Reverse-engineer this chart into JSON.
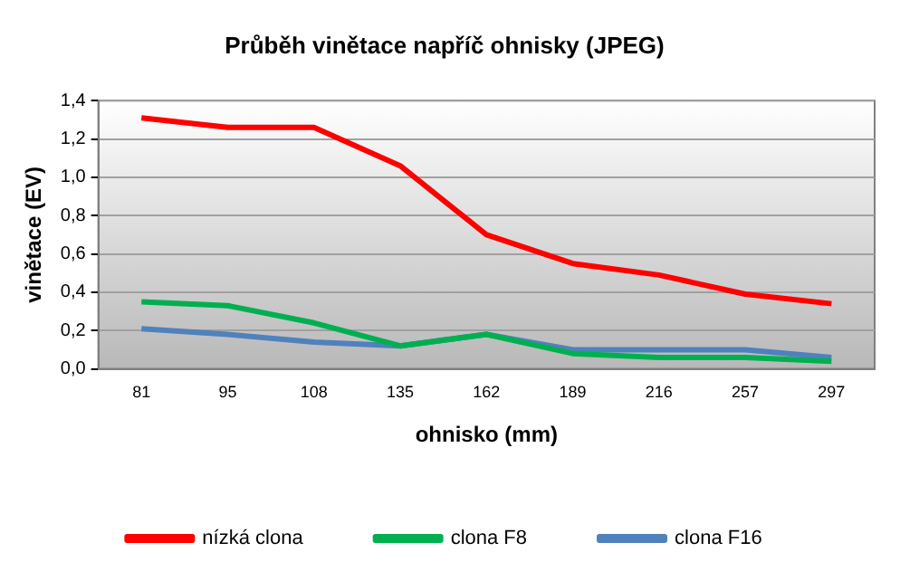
{
  "chart_data": {
    "type": "line",
    "title": "Průběh vinětace napříč ohnisky (JPEG)",
    "xlabel": "ohnisko (mm)",
    "ylabel": "vinětace (EV)",
    "categories": [
      "81",
      "95",
      "108",
      "135",
      "162",
      "189",
      "216",
      "257",
      "297"
    ],
    "series": [
      {
        "name": "nízká clona",
        "color": "#ff0000",
        "values": [
          1.31,
          1.26,
          1.26,
          1.06,
          0.7,
          0.55,
          0.49,
          0.39,
          0.34
        ]
      },
      {
        "name": "clona F8",
        "color": "#00b050",
        "values": [
          0.35,
          0.33,
          0.24,
          0.12,
          0.18,
          0.08,
          0.06,
          0.06,
          0.04
        ]
      },
      {
        "name": "clona F16",
        "color": "#4f81bd",
        "values": [
          0.21,
          0.18,
          0.14,
          0.12,
          0.18,
          0.1,
          0.1,
          0.1,
          0.06
        ]
      }
    ],
    "ylim": [
      0,
      1.4
    ],
    "yticks": [
      {
        "value": 0,
        "label": "0,0"
      },
      {
        "value": 0.2,
        "label": "0,2"
      },
      {
        "value": 0.4,
        "label": "0,4"
      },
      {
        "value": 0.6,
        "label": "0,6"
      },
      {
        "value": 0.8,
        "label": "0,8"
      },
      {
        "value": 1,
        "label": "1,0"
      },
      {
        "value": 1.2,
        "label": "1,2"
      },
      {
        "value": 1.4,
        "label": "1,4"
      }
    ],
    "grid": "y",
    "legend": "bottom",
    "marker": "none",
    "line_style": "solid"
  }
}
